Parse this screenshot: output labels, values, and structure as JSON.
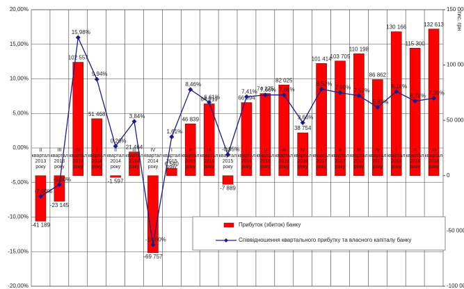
{
  "chart_data": {
    "type": "bar-line",
    "y2_label": "тис. грн",
    "categories": [
      "II квартал 2013 року",
      "III квартал 2013 року",
      "IV квартал 2013 року",
      "I квартал 2014 року",
      "II квартал 2014 року",
      "III квартал 2014 року",
      "IV квартал 2014 року",
      "I квартал 2015 року",
      "II квартал 2015 року",
      "III квартал 2015 року",
      "IV квартал 2015 року",
      "I квартал 2016 року",
      "II квартал 2016 року",
      "III квартал 2016 року",
      "IV квартал 2016 року",
      "I квартал 2017 року",
      "II квартал 2017 року",
      "III квартал 2017 року",
      "IV квартал 2017 року",
      "I квартал 2018 року",
      "II квартал 2018 року",
      "III квартал 2018 року"
    ],
    "series": [
      {
        "name": "Прибуток (збиток) банку",
        "type": "bar",
        "axis": "y2",
        "color": "#ff0000",
        "values": [
          -41189,
          -23145,
          102557,
          51468,
          -1597,
          21464,
          -69757,
          6540,
          46839,
          64919,
          -7889,
          66094,
          74275,
          82025,
          38754,
          101414,
          103705,
          110198,
          86862,
          130166,
          115300,
          132613
        ],
        "value_labels": [
          "-41 189",
          "-23 145",
          "102 557",
          "51 468",
          "-1 597",
          "21 464",
          "-69 757",
          "6 540",
          "46 839",
          "64 919",
          "-7 889",
          "66 094",
          "74 275",
          "82 025",
          "38 754",
          "101 414",
          "103 705",
          "110 198",
          "86 862",
          "130 166",
          "115 300",
          "132 613"
        ]
      },
      {
        "name": "Співвідношення квартального прибутку та власного капіталу банку",
        "type": "line",
        "axis": "y",
        "color": "#1a1a8c",
        "values": [
          -7.0,
          -5.3,
          15.98,
          9.94,
          0.26,
          3.84,
          -14.0,
          1.61,
          8.46,
          6.61,
          -0.95,
          7.41,
          7.66,
          7.68,
          3.66,
          8.52,
          7.99,
          7.57,
          5.89,
          8.16,
          6.78,
          7.2
        ],
        "value_labels": [
          "-7,00%",
          "-5,30%",
          "15,98%",
          "9,94%",
          "0,26%",
          "3,84%",
          "-14,00%",
          "1,61%",
          "8,46%",
          "6,61%",
          "-0,95%",
          "7,41%",
          "7,66%",
          "7,68%",
          "3,66%",
          "8,52%",
          "7,99%",
          "7,57%",
          "5,89%",
          "8,16%",
          "6,78%",
          "7,20%"
        ]
      }
    ],
    "ylim": [
      -20,
      20
    ],
    "yticks": [
      {
        "value": -20,
        "label": "-20,00%"
      },
      {
        "value": -15,
        "label": "-15,00%"
      },
      {
        "value": -10,
        "label": "-10,00%"
      },
      {
        "value": -5,
        "label": "-5,00%"
      },
      {
        "value": 0,
        "label": "0,00%"
      },
      {
        "value": 5,
        "label": "5,00%"
      },
      {
        "value": 10,
        "label": "10,00%"
      },
      {
        "value": 15,
        "label": "15,00%"
      },
      {
        "value": 20,
        "label": "20,00%"
      }
    ],
    "y2lim": [
      -100000,
      150000
    ],
    "y2ticks": [
      {
        "value": -100000,
        "label": "-100 000"
      },
      {
        "value": -50000,
        "label": "-50 000"
      },
      0,
      {
        "value": 50000,
        "label": "50 000"
      },
      {
        "value": 100000,
        "label": "100 000"
      },
      {
        "value": 150000,
        "label": "150 000"
      }
    ],
    "grid": true
  }
}
